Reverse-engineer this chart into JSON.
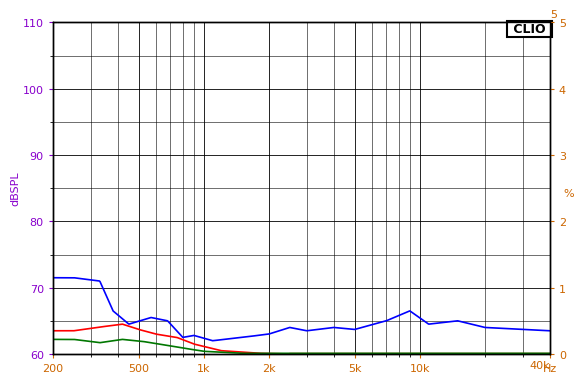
{
  "title": "CLIO",
  "ylabel_left": "dBSPL",
  "ylabel_right": "%",
  "xlabel": "Hz",
  "xlim": [
    200,
    40000
  ],
  "ylim_left": [
    60,
    110
  ],
  "ylim_right": [
    0,
    5
  ],
  "yticks_left": [
    60,
    70,
    80,
    90,
    100,
    110
  ],
  "yticks_right": [
    0,
    1,
    2,
    3,
    4,
    5
  ],
  "xticks": [
    200,
    500,
    1000,
    2000,
    5000,
    10000,
    40000
  ],
  "xticklabels": [
    "200",
    "500",
    "1k",
    "2k",
    "5k",
    "10k",
    "Hz"
  ],
  "bg_color": "#ffffff",
  "grid_color": "#000000",
  "line_blue_color": "#0000ff",
  "line_red_color": "#ff0000",
  "line_green_color": "#007700",
  "left_label_color": "#8800cc",
  "right_axis_color": "#cc6600",
  "clio_box_color": "#000000"
}
